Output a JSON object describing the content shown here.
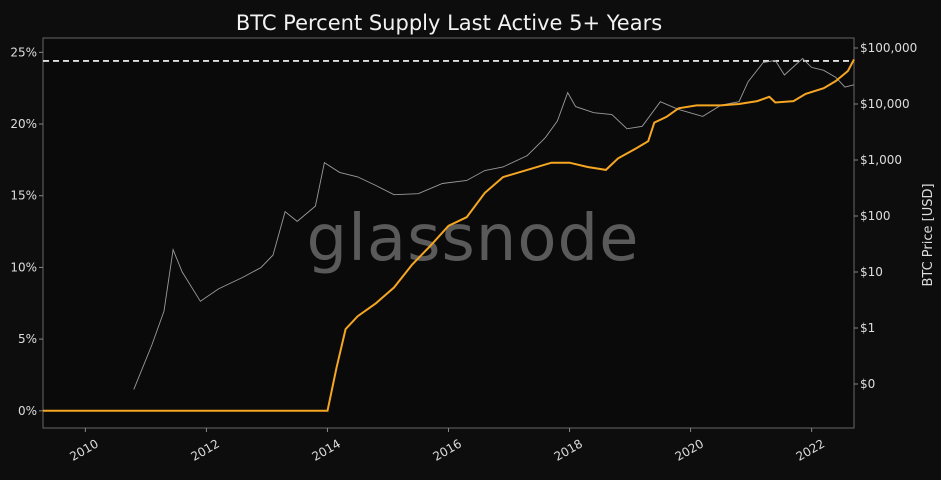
{
  "chart_data": {
    "type": "line",
    "title": "BTC Percent Supply Last Active 5+ Years",
    "watermark": "glassnode",
    "xlabel": "",
    "ylabel_left": "",
    "ylabel_right": "BTC Price [USD]",
    "x_ticks": [
      "2010",
      "2012",
      "2014",
      "2016",
      "2018",
      "2020",
      "2022"
    ],
    "y_left_ticks": [
      "0%",
      "5%",
      "10%",
      "15%",
      "20%",
      "25%"
    ],
    "y_left_range": [
      -1.2,
      26
    ],
    "y_right_ticks": [
      "$0",
      "$1",
      "$10",
      "$100",
      "$1,000",
      "$10,000",
      "$100,000"
    ],
    "y_right_scale": "log",
    "x_range": [
      2009.3,
      2022.7
    ],
    "grid": false,
    "reference_line": {
      "value": 24.4,
      "style": "dashed",
      "color": "#ffffff"
    },
    "series": [
      {
        "axis": "left",
        "color": "#f5a623",
        "values_pct": [
          [
            2009.3,
            0
          ],
          [
            2014.0,
            0
          ],
          [
            2014.15,
            3
          ],
          [
            2014.3,
            5.7
          ],
          [
            2014.5,
            6.6
          ],
          [
            2014.8,
            7.5
          ],
          [
            2015.1,
            8.6
          ],
          [
            2015.4,
            10.2
          ],
          [
            2015.7,
            11.5
          ],
          [
            2016.0,
            12.9
          ],
          [
            2016.3,
            13.5
          ],
          [
            2016.6,
            15.2
          ],
          [
            2016.9,
            16.3
          ],
          [
            2017.3,
            16.8
          ],
          [
            2017.7,
            17.3
          ],
          [
            2018.0,
            17.3
          ],
          [
            2018.3,
            17.0
          ],
          [
            2018.6,
            16.8
          ],
          [
            2018.8,
            17.6
          ],
          [
            2019.1,
            18.3
          ],
          [
            2019.3,
            18.8
          ],
          [
            2019.4,
            20.1
          ],
          [
            2019.6,
            20.5
          ],
          [
            2019.8,
            21.1
          ],
          [
            2020.1,
            21.3
          ],
          [
            2020.5,
            21.3
          ],
          [
            2020.8,
            21.4
          ],
          [
            2021.1,
            21.6
          ],
          [
            2021.3,
            21.9
          ],
          [
            2021.4,
            21.5
          ],
          [
            2021.7,
            21.6
          ],
          [
            2021.9,
            22.1
          ],
          [
            2022.2,
            22.5
          ],
          [
            2022.4,
            23.0
          ],
          [
            2022.6,
            23.7
          ],
          [
            2022.7,
            24.5
          ]
        ]
      },
      {
        "axis": "right",
        "color": "#9a9a9a",
        "name": "",
        "values_usd": [
          [
            2010.8,
            0.08
          ],
          [
            2011.1,
            0.5
          ],
          [
            2011.3,
            2
          ],
          [
            2011.45,
            25
          ],
          [
            2011.6,
            10
          ],
          [
            2011.9,
            3
          ],
          [
            2012.2,
            5
          ],
          [
            2012.6,
            8
          ],
          [
            2012.9,
            12
          ],
          [
            2013.1,
            20
          ],
          [
            2013.3,
            120
          ],
          [
            2013.5,
            80
          ],
          [
            2013.8,
            150
          ],
          [
            2013.95,
            900
          ],
          [
            2014.2,
            600
          ],
          [
            2014.5,
            500
          ],
          [
            2014.8,
            350
          ],
          [
            2015.1,
            240
          ],
          [
            2015.5,
            250
          ],
          [
            2015.9,
            380
          ],
          [
            2016.3,
            430
          ],
          [
            2016.6,
            650
          ],
          [
            2016.9,
            750
          ],
          [
            2017.3,
            1200
          ],
          [
            2017.6,
            2500
          ],
          [
            2017.8,
            5000
          ],
          [
            2017.97,
            16000
          ],
          [
            2018.1,
            9000
          ],
          [
            2018.4,
            7000
          ],
          [
            2018.7,
            6500
          ],
          [
            2018.95,
            3600
          ],
          [
            2019.2,
            4000
          ],
          [
            2019.5,
            11000
          ],
          [
            2019.8,
            8000
          ],
          [
            2020.2,
            6000
          ],
          [
            2020.5,
            9500
          ],
          [
            2020.8,
            11000
          ],
          [
            2020.95,
            25000
          ],
          [
            2021.2,
            55000
          ],
          [
            2021.4,
            60000
          ],
          [
            2021.55,
            33000
          ],
          [
            2021.85,
            65000
          ],
          [
            2022.0,
            45000
          ],
          [
            2022.2,
            40000
          ],
          [
            2022.4,
            30000
          ],
          [
            2022.55,
            20000
          ],
          [
            2022.7,
            22000
          ]
        ]
      }
    ]
  }
}
